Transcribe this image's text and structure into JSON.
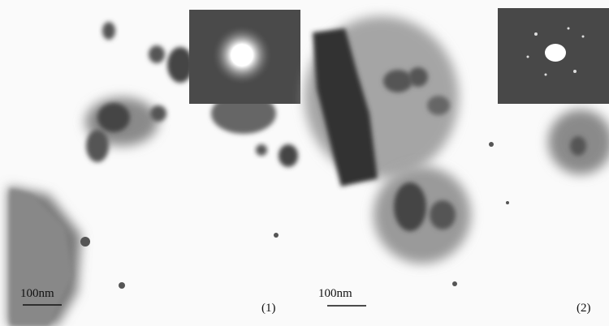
{
  "panels": [
    {
      "scale_label": "100nm",
      "caption": "(1)"
    },
    {
      "scale_label": "100nm",
      "caption": "(2)"
    }
  ]
}
